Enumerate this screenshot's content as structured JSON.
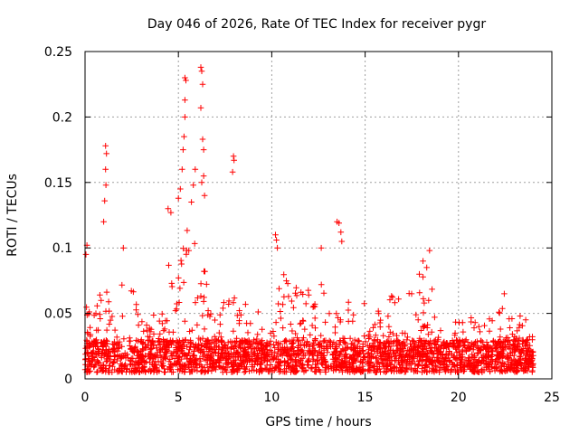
{
  "chart_data": {
    "type": "scatter",
    "title": "Day 046 of 2026, Rate Of TEC Index for receiver pygr",
    "xlabel": "GPS time / hours",
    "ylabel": "ROTI / TECUs",
    "xlim": [
      0,
      25
    ],
    "ylim": [
      0,
      0.25
    ],
    "grid": true,
    "marker": "+",
    "color": "#ff0000",
    "x_ticks": [
      0,
      5,
      10,
      15,
      20,
      25
    ],
    "x_tick_labels": [
      "0",
      "5",
      "10",
      "15",
      "20",
      "25"
    ],
    "y_ticks": [
      0,
      0.05,
      0.1,
      0.15,
      0.2,
      0.25
    ],
    "y_tick_labels": [
      "0",
      "0.05",
      "0.1",
      "0.15",
      "0.2",
      "0.25"
    ],
    "series": [
      {
        "name": "ROTI",
        "highlight_points": [
          {
            "x": 1.1,
            "y": 0.178
          },
          {
            "x": 1.15,
            "y": 0.172
          },
          {
            "x": 1.1,
            "y": 0.16
          },
          {
            "x": 1.12,
            "y": 0.148
          },
          {
            "x": 1.05,
            "y": 0.136
          },
          {
            "x": 1.0,
            "y": 0.12
          },
          {
            "x": 0.1,
            "y": 0.102
          },
          {
            "x": 0.05,
            "y": 0.095
          },
          {
            "x": 2.05,
            "y": 0.1
          },
          {
            "x": 5.0,
            "y": 0.138
          },
          {
            "x": 5.1,
            "y": 0.145
          },
          {
            "x": 5.2,
            "y": 0.16
          },
          {
            "x": 5.25,
            "y": 0.175
          },
          {
            "x": 5.3,
            "y": 0.185
          },
          {
            "x": 5.35,
            "y": 0.2
          },
          {
            "x": 5.35,
            "y": 0.213
          },
          {
            "x": 5.4,
            "y": 0.228
          },
          {
            "x": 5.35,
            "y": 0.23
          },
          {
            "x": 5.7,
            "y": 0.135
          },
          {
            "x": 5.8,
            "y": 0.148
          },
          {
            "x": 5.9,
            "y": 0.16
          },
          {
            "x": 6.2,
            "y": 0.238
          },
          {
            "x": 6.25,
            "y": 0.235
          },
          {
            "x": 6.3,
            "y": 0.225
          },
          {
            "x": 6.2,
            "y": 0.207
          },
          {
            "x": 6.3,
            "y": 0.183
          },
          {
            "x": 6.35,
            "y": 0.175
          },
          {
            "x": 6.25,
            "y": 0.15
          },
          {
            "x": 6.35,
            "y": 0.155
          },
          {
            "x": 6.4,
            "y": 0.14
          },
          {
            "x": 7.95,
            "y": 0.17
          },
          {
            "x": 7.98,
            "y": 0.167
          },
          {
            "x": 7.9,
            "y": 0.158
          },
          {
            "x": 4.45,
            "y": 0.13
          },
          {
            "x": 4.6,
            "y": 0.127
          },
          {
            "x": 10.2,
            "y": 0.11
          },
          {
            "x": 10.25,
            "y": 0.106
          },
          {
            "x": 10.3,
            "y": 0.1
          },
          {
            "x": 13.5,
            "y": 0.12
          },
          {
            "x": 13.6,
            "y": 0.119
          },
          {
            "x": 13.7,
            "y": 0.112
          },
          {
            "x": 13.75,
            "y": 0.105
          },
          {
            "x": 12.65,
            "y": 0.1
          },
          {
            "x": 18.45,
            "y": 0.098
          },
          {
            "x": 18.1,
            "y": 0.09
          },
          {
            "x": 18.3,
            "y": 0.085
          },
          {
            "x": 17.9,
            "y": 0.08
          },
          {
            "x": 22.45,
            "y": 0.065
          },
          {
            "x": 23.3,
            "y": 0.048
          },
          {
            "x": 23.6,
            "y": 0.045
          }
        ],
        "envelope": [
          {
            "x": 0.0,
            "y": 0.06
          },
          {
            "x": 0.5,
            "y": 0.05
          },
          {
            "x": 1.0,
            "y": 0.075
          },
          {
            "x": 1.5,
            "y": 0.05
          },
          {
            "x": 2.0,
            "y": 0.08
          },
          {
            "x": 2.5,
            "y": 0.07
          },
          {
            "x": 3.0,
            "y": 0.055
          },
          {
            "x": 3.5,
            "y": 0.05
          },
          {
            "x": 4.0,
            "y": 0.06
          },
          {
            "x": 4.5,
            "y": 0.09
          },
          {
            "x": 5.0,
            "y": 0.11
          },
          {
            "x": 5.5,
            "y": 0.12
          },
          {
            "x": 6.0,
            "y": 0.1
          },
          {
            "x": 6.5,
            "y": 0.08
          },
          {
            "x": 7.0,
            "y": 0.055
          },
          {
            "x": 7.5,
            "y": 0.06
          },
          {
            "x": 8.0,
            "y": 0.065
          },
          {
            "x": 8.5,
            "y": 0.06
          },
          {
            "x": 9.0,
            "y": 0.07
          },
          {
            "x": 9.5,
            "y": 0.07
          },
          {
            "x": 10.0,
            "y": 0.075
          },
          {
            "x": 10.5,
            "y": 0.08
          },
          {
            "x": 11.0,
            "y": 0.08
          },
          {
            "x": 11.5,
            "y": 0.075
          },
          {
            "x": 12.0,
            "y": 0.085
          },
          {
            "x": 12.5,
            "y": 0.085
          },
          {
            "x": 13.0,
            "y": 0.07
          },
          {
            "x": 13.5,
            "y": 0.06
          },
          {
            "x": 14.0,
            "y": 0.06
          },
          {
            "x": 14.5,
            "y": 0.065
          },
          {
            "x": 15.0,
            "y": 0.06
          },
          {
            "x": 15.5,
            "y": 0.05
          },
          {
            "x": 16.0,
            "y": 0.06
          },
          {
            "x": 16.5,
            "y": 0.065
          },
          {
            "x": 17.0,
            "y": 0.06
          },
          {
            "x": 17.5,
            "y": 0.07
          },
          {
            "x": 18.0,
            "y": 0.085
          },
          {
            "x": 18.5,
            "y": 0.08
          },
          {
            "x": 19.0,
            "y": 0.055
          },
          {
            "x": 19.5,
            "y": 0.05
          },
          {
            "x": 20.0,
            "y": 0.045
          },
          {
            "x": 20.5,
            "y": 0.05
          },
          {
            "x": 21.0,
            "y": 0.045
          },
          {
            "x": 21.5,
            "y": 0.05
          },
          {
            "x": 22.0,
            "y": 0.05
          },
          {
            "x": 22.5,
            "y": 0.06
          },
          {
            "x": 23.0,
            "y": 0.045
          },
          {
            "x": 23.5,
            "y": 0.04
          },
          {
            "x": 24.0,
            "y": 0.035
          }
        ],
        "x_range": [
          0,
          24
        ],
        "baseline_range": [
          0.005,
          0.03
        ],
        "dense_sample_count": 2600
      }
    ]
  }
}
